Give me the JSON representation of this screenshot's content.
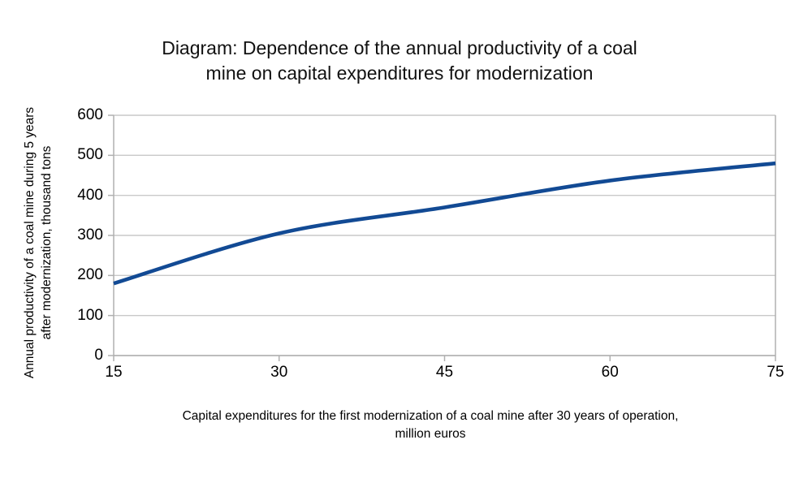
{
  "title": {
    "lines": [
      "Diagram: Dependence of the annual productivity of a coal",
      "mine on capital expenditures for modernization"
    ]
  },
  "axis_titles": {
    "x_lines": [
      "Capital expenditures for the first modernization of a coal mine after 30 years of operation,",
      "million euros"
    ],
    "y_lines": [
      "Annual productivity of a coal mine during 5 years",
      "after modernization, thousand tons"
    ]
  },
  "chart_data": {
    "type": "line",
    "title": "Diagram: Dependence of the annual productivity of a coal mine on capital expenditures for modernization",
    "xlabel": "Capital expenditures for the first modernization of a coal mine after 30 years of operation, million euros",
    "ylabel": "Annual productivity of a coal mine during 5 years after modernization, thousand tons",
    "x": [
      15,
      30,
      45,
      60,
      75
    ],
    "y": [
      180,
      305,
      370,
      437,
      480
    ],
    "xticks": [
      "15",
      "30",
      "45",
      "60",
      "75"
    ],
    "yticks": [
      "0",
      "100",
      "200",
      "300",
      "400",
      "500",
      "600"
    ],
    "xtick_values": [
      15,
      30,
      45,
      60,
      75
    ],
    "ytick_values": [
      0,
      100,
      200,
      300,
      400,
      500,
      600
    ],
    "xlim": [
      15,
      75
    ],
    "ylim": [
      0,
      600
    ],
    "grid": "horizontal",
    "legend": "none",
    "line_color": "#124a94",
    "gridline_color": "#c9c9c9",
    "axis_color": "#b0b0b0",
    "background_color": "#ffffff"
  }
}
